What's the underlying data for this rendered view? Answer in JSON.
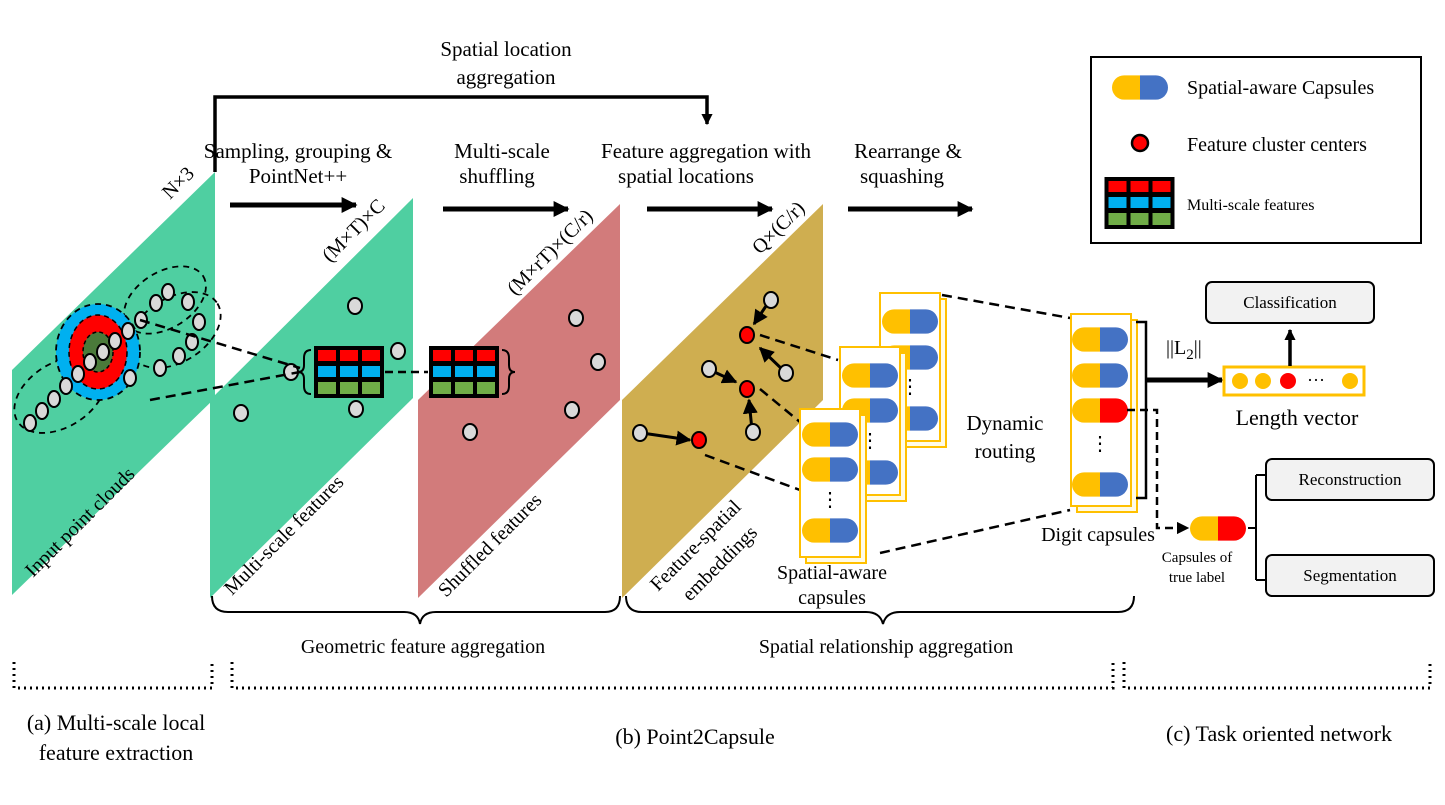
{
  "top_arrow": {
    "line1": "Spatial location",
    "line2": "aggregation"
  },
  "steps": {
    "sampling": {
      "line1": "Sampling, grouping &",
      "line2": "PointNet++"
    },
    "shuffling": {
      "line1": "Multi-scale",
      "line2": "shuffling"
    },
    "feature_aggregation": {
      "line1": "Feature aggregation with",
      "line2": "spatial locations"
    },
    "rearrange": {
      "line1": "Rearrange &",
      "line2": "squashing"
    }
  },
  "dims": {
    "input": "N×3",
    "multiscale": "(M×T)×C",
    "shuffled": "(M×rT)×(C/r)",
    "embeddings": "Q×(C/r)"
  },
  "planes": {
    "input": "Input point clouds",
    "multiscale": "Multi-scale features",
    "shuffled": "Shuffled features",
    "embeddings_line1": "Feature-spatial",
    "embeddings_line2": "embeddings"
  },
  "capsules": {
    "spatial_line1": "Spatial-aware",
    "spatial_line2": "capsules",
    "routing_line1": "Dynamic",
    "routing_line2": "routing",
    "digit": "Digit capsules",
    "norm": "||L",
    "norm_sub": "2",
    "norm_end": "||",
    "length_vector": "Length vector",
    "ellipsis": "···",
    "vdots": "⋮",
    "true_label_line1": "Capsules of",
    "true_label_line2": "true label"
  },
  "tasks": {
    "classification": "Classification",
    "reconstruction": "Reconstruction",
    "segmentation": "Segmentation"
  },
  "braces": {
    "geometric": "Geometric feature aggregation",
    "spatial": "Spatial relationship aggregation"
  },
  "sections": {
    "a_line1": "(a) Multi-scale local",
    "a_line2": "feature extraction",
    "b": "(b) Point2Capsule",
    "c": "(c) Task oriented network"
  },
  "legend": {
    "capsules": "Spatial-aware Capsules",
    "centers": "Feature cluster centers",
    "multiscale": "Multi-scale features"
  },
  "colors": {
    "plane_green": "#4fcfa1",
    "plane_pink": "#d27b7b",
    "plane_gold": "#cfae50",
    "capsule_yellow": "#ffc000",
    "capsule_blue": "#4472c4",
    "center_red": "#ff0000",
    "grid_red": "#ff0000",
    "grid_blue": "#00b0f0",
    "grid_green": "#70ad47"
  }
}
